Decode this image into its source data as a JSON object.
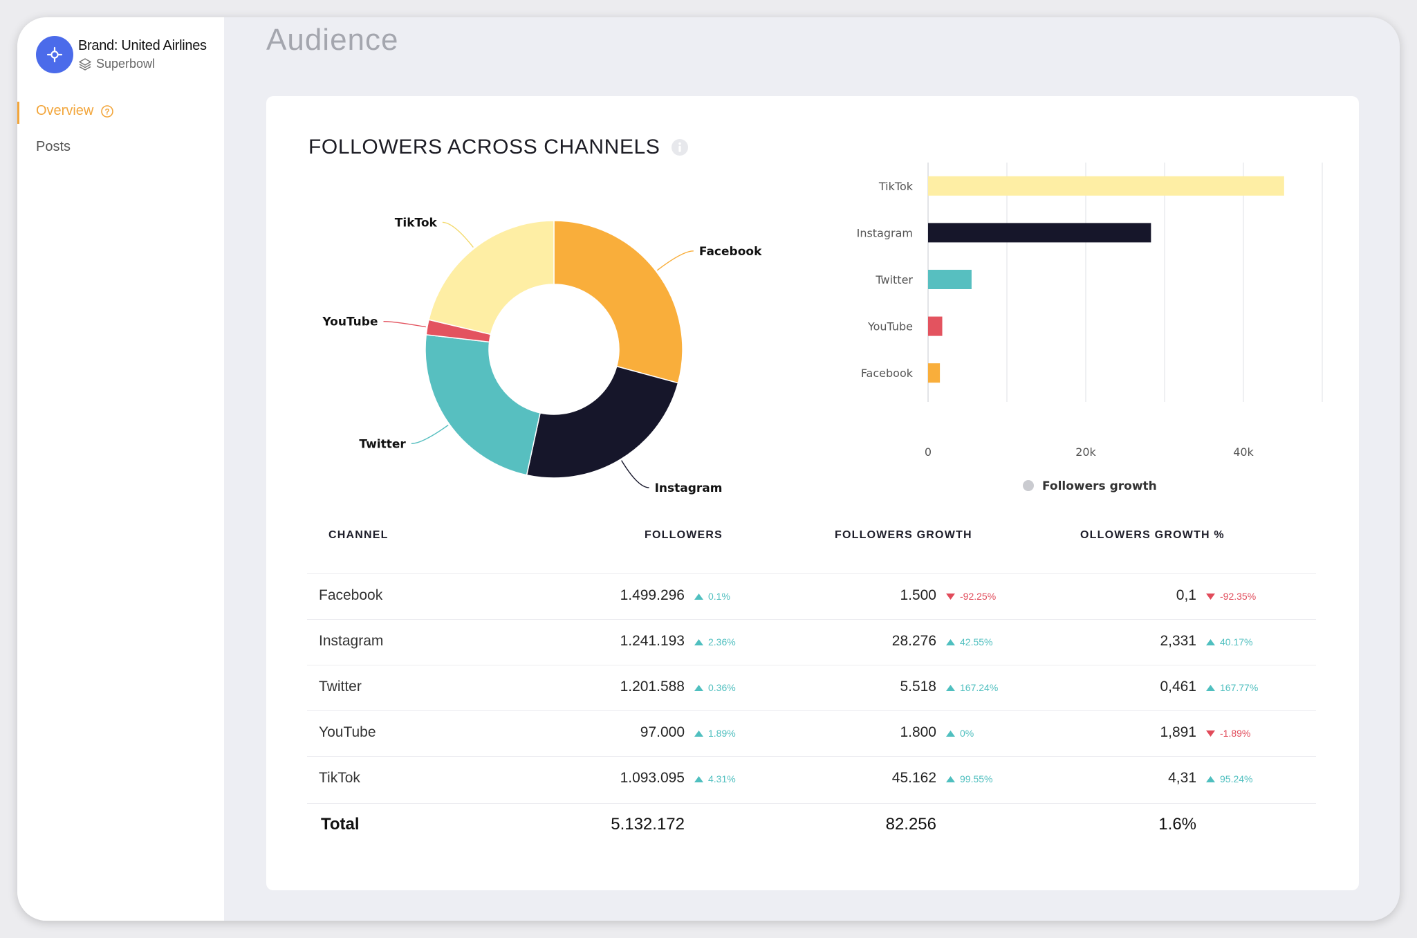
{
  "brand": {
    "name": "Brand: United Airlines",
    "subtitle": "Superbowl",
    "accent": "#4b6bea"
  },
  "nav": {
    "overview": "Overview",
    "posts": "Posts",
    "active_color": "#f2a53a"
  },
  "page": {
    "title": "Audience"
  },
  "card": {
    "title": "FOLLOWERS ACROSS CHANNELS"
  },
  "colors": {
    "Facebook": "#f9ae3b",
    "Instagram": "#16162a",
    "Twitter": "#57bfc0",
    "YouTube": "#e3535f",
    "TikTok": "#feeea4"
  },
  "chart_data": [
    {
      "type": "pie",
      "donut": true,
      "slices": [
        {
          "label": "Facebook",
          "value": 1499296
        },
        {
          "label": "Instagram",
          "value": 1241193
        },
        {
          "label": "Twitter",
          "value": 1201588
        },
        {
          "label": "YouTube",
          "value": 97000
        },
        {
          "label": "TikTok",
          "value": 1093095
        }
      ]
    },
    {
      "type": "bar",
      "orientation": "horizontal",
      "categories": [
        "TikTok",
        "Instagram",
        "Twitter",
        "YouTube",
        "Facebook"
      ],
      "series": [
        {
          "name": "Followers growth",
          "values": [
            45162,
            28276,
            5518,
            1800,
            1500
          ]
        }
      ],
      "xlim": [
        0,
        50000
      ],
      "ticks": [
        {
          "value": 0,
          "label": "0"
        },
        {
          "value": 20000,
          "label": "20k"
        },
        {
          "value": 40000,
          "label": "40k"
        }
      ],
      "grid": true,
      "legend": "bottom"
    }
  ],
  "table": {
    "headers": [
      "CHANNEL",
      "FOLLOWERS",
      "FOLLOWERS GROWTH",
      "OLLOWERS GROWTH %"
    ],
    "rows": [
      {
        "channel": "Facebook",
        "followers": "1.499.296",
        "followers_delta": "0.1%",
        "followers_dir": "up",
        "growth": "1.500",
        "growth_delta": "-92.25%",
        "growth_dir": "down",
        "pct": "0,1",
        "pct_delta": "-92.35%",
        "pct_dir": "down"
      },
      {
        "channel": "Instagram",
        "followers": "1.241.193",
        "followers_delta": "2.36%",
        "followers_dir": "up",
        "growth": "28.276",
        "growth_delta": "42.55%",
        "growth_dir": "up",
        "pct": "2,331",
        "pct_delta": "40.17%",
        "pct_dir": "up"
      },
      {
        "channel": "Twitter",
        "followers": "1.201.588",
        "followers_delta": "0.36%",
        "followers_dir": "up",
        "growth": "5.518",
        "growth_delta": "167.24%",
        "growth_dir": "up",
        "pct": "0,461",
        "pct_delta": "167.77%",
        "pct_dir": "up"
      },
      {
        "channel": "YouTube",
        "followers": "97.000",
        "followers_delta": "1.89%",
        "followers_dir": "up",
        "growth": "1.800",
        "growth_delta": "0%",
        "growth_dir": "up",
        "pct": "1,891",
        "pct_delta": "-1.89%",
        "pct_dir": "down"
      },
      {
        "channel": "TikTok",
        "followers": "1.093.095",
        "followers_delta": "4.31%",
        "followers_dir": "up",
        "growth": "45.162",
        "growth_delta": "99.55%",
        "growth_dir": "up",
        "pct": "4,31",
        "pct_delta": "95.24%",
        "pct_dir": "up"
      }
    ],
    "total": {
      "label": "Total",
      "followers": "5.132.172",
      "growth": "82.256",
      "pct": "1.6%"
    }
  }
}
